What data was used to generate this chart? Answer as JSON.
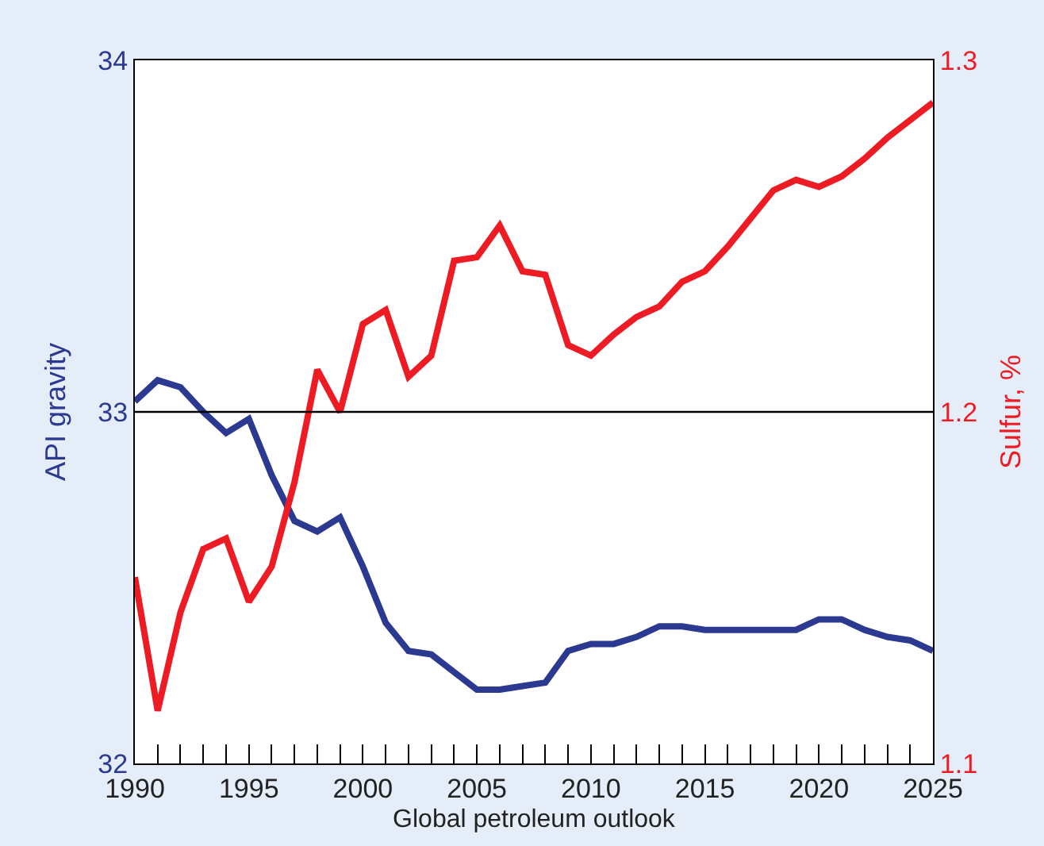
{
  "chart_data": {
    "type": "line",
    "xlabel": "Global petroleum outlook",
    "ylabel": "API gravity",
    "y2label": "Sulfur, %",
    "x": [
      1990,
      1991,
      1992,
      1993,
      1994,
      1995,
      1996,
      1997,
      1998,
      1999,
      2000,
      2001,
      2002,
      2003,
      2004,
      2005,
      2006,
      2007,
      2008,
      2009,
      2010,
      2011,
      2012,
      2013,
      2014,
      2015,
      2016,
      2017,
      2018,
      2019,
      2020,
      2021,
      2022,
      2023,
      2024,
      2025
    ],
    "series": [
      {
        "color": "#2b3990",
        "values": [
          33.03,
          33.09,
          33.07,
          33.0,
          32.94,
          32.98,
          32.82,
          32.69,
          32.66,
          32.7,
          32.56,
          32.4,
          32.32,
          32.31,
          32.26,
          32.21,
          32.21,
          32.22,
          32.23,
          32.32,
          32.34,
          32.34,
          32.36,
          32.39,
          32.39,
          32.38,
          32.38,
          32.38,
          32.38,
          32.38,
          32.41,
          32.41,
          32.38,
          32.36,
          32.35,
          32.32
        ]
      },
      {
        "color": "#ed1c24",
        "axis": "y2",
        "values": [
          1.153,
          1.115,
          1.143,
          1.161,
          1.164,
          1.146,
          1.156,
          1.18,
          1.212,
          1.2,
          1.225,
          1.229,
          1.21,
          1.216,
          1.243,
          1.244,
          1.253,
          1.24,
          1.239,
          1.219,
          1.216,
          1.222,
          1.227,
          1.23,
          1.237,
          1.24,
          1.247,
          1.255,
          1.263,
          1.266,
          1.264,
          1.267,
          1.272,
          1.278,
          1.283,
          1.288
        ]
      }
    ],
    "xlim": [
      1990,
      2025
    ],
    "xticks": [
      1990,
      {
        "value": 1991,
        "label": null
      },
      {
        "value": 1992,
        "label": null
      },
      {
        "value": 1993,
        "label": null
      },
      {
        "value": 1994,
        "label": null
      },
      1995,
      {
        "value": 1996,
        "label": null
      },
      {
        "value": 1997,
        "label": null
      },
      {
        "value": 1998,
        "label": null
      },
      {
        "value": 1999,
        "label": null
      },
      2000,
      {
        "value": 2001,
        "label": null
      },
      {
        "value": 2002,
        "label": null
      },
      {
        "value": 2003,
        "label": null
      },
      {
        "value": 2004,
        "label": null
      },
      2005,
      {
        "value": 2006,
        "label": null
      },
      {
        "value": 2007,
        "label": null
      },
      {
        "value": 2008,
        "label": null
      },
      {
        "value": 2009,
        "label": null
      },
      2010,
      {
        "value": 2011,
        "label": null
      },
      {
        "value": 2012,
        "label": null
      },
      {
        "value": 2013,
        "label": null
      },
      {
        "value": 2014,
        "label": null
      },
      2015,
      {
        "value": 2016,
        "label": null
      },
      {
        "value": 2017,
        "label": null
      },
      {
        "value": 2018,
        "label": null
      },
      {
        "value": 2019,
        "label": null
      },
      2020,
      {
        "value": 2021,
        "label": null
      },
      {
        "value": 2022,
        "label": null
      },
      {
        "value": 2023,
        "label": null
      },
      {
        "value": 2024,
        "label": null
      },
      2025
    ],
    "ylim": [
      32,
      34
    ],
    "yticks": [
      32,
      33,
      34
    ],
    "y2lim": [
      1.1,
      1.3
    ],
    "y2ticks": [
      1.1,
      1.2,
      1.3
    ],
    "ref_lines": [
      {
        "axis": "y",
        "value": 33,
        "color": "#000000"
      }
    ],
    "marker": "none",
    "line_style": "solid"
  }
}
